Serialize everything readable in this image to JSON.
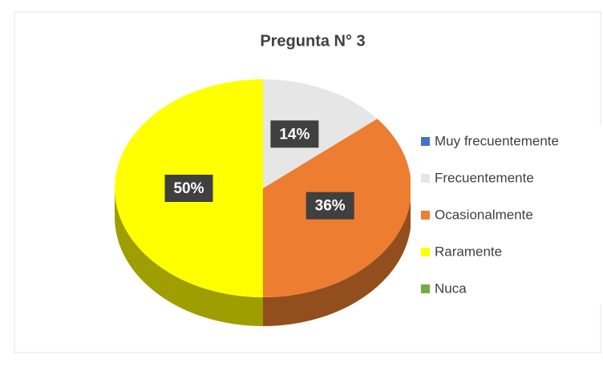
{
  "chart_data": {
    "type": "pie",
    "title": "Pregunta N° 3",
    "categories": [
      "Muy frecuentemente",
      "Frecuentemente",
      "Ocasionalmente",
      "Raramente",
      "Nuca"
    ],
    "values": [
      0,
      14,
      36,
      50,
      0
    ],
    "value_labels": [
      null,
      "14%",
      "36%",
      "50%",
      null
    ],
    "colors": [
      "#4472c4",
      "#e7e6e6",
      "#ed7d31",
      "#ffff00",
      "#70ad47"
    ],
    "legend": "right"
  }
}
